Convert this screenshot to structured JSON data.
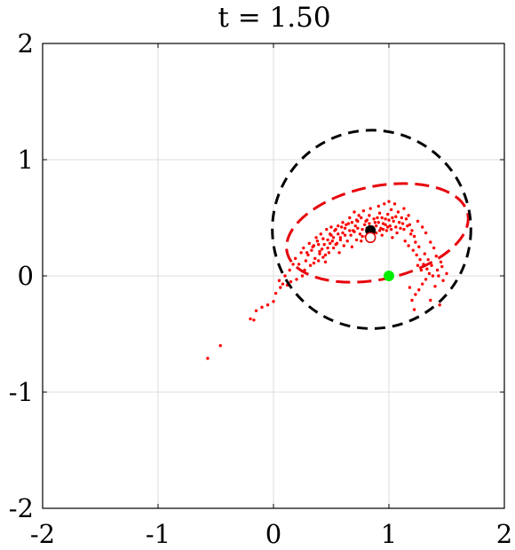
{
  "chart_data": {
    "type": "scatter",
    "title": "t = 1.50",
    "xlabel": "",
    "ylabel": "",
    "xlim": [
      -2,
      2
    ],
    "ylim": [
      -2,
      2
    ],
    "x_ticks": [
      -2,
      -1,
      0,
      1,
      2
    ],
    "y_ticks": [
      -2,
      -1,
      0,
      1,
      2
    ],
    "x_tick_labels": [
      "-2",
      "-1",
      "0",
      "1",
      "2"
    ],
    "y_tick_labels": [
      "-2",
      "-1",
      "0",
      "1",
      "2"
    ],
    "grid": true,
    "colors": {
      "particles": "#ff0000",
      "ellipse": "#e8000b",
      "circle": "#000000",
      "target": "#00ee00",
      "mean_marker": "#000000",
      "estimate_marker": "#ffffff",
      "grid": "#dcdcdc"
    },
    "circle": {
      "center": [
        0.85,
        0.4
      ],
      "radius": 0.86
    },
    "ellipse": {
      "center": [
        0.9,
        0.37
      ],
      "semi_axes": [
        0.8,
        0.4
      ],
      "angle_deg": 12
    },
    "markers": [
      {
        "name": "mean",
        "x": 0.84,
        "y": 0.39,
        "color": "#000000"
      },
      {
        "name": "estimate",
        "x": 0.84,
        "y": 0.33,
        "color": "#ffffff"
      },
      {
        "name": "target",
        "x": 1.0,
        "y": 0.0,
        "color": "#00ee00"
      }
    ],
    "particles": [
      [
        -0.57,
        -0.71
      ],
      [
        -0.46,
        -0.6
      ],
      [
        -0.2,
        -0.37
      ],
      [
        -0.17,
        -0.38
      ],
      [
        -0.15,
        -0.3
      ],
      [
        -0.1,
        -0.27
      ],
      [
        -0.05,
        -0.25
      ],
      [
        0.0,
        -0.22
      ],
      [
        0.02,
        -0.15
      ],
      [
        0.06,
        -0.1
      ],
      [
        0.08,
        -0.07
      ],
      [
        0.12,
        -0.08
      ],
      [
        0.15,
        -0.05
      ],
      [
        0.2,
        -0.03
      ],
      [
        0.25,
        0.0
      ],
      [
        0.27,
        0.05
      ],
      [
        0.22,
        0.1
      ],
      [
        0.28,
        0.13
      ],
      [
        0.3,
        0.18
      ],
      [
        0.33,
        0.22
      ],
      [
        0.35,
        0.26
      ],
      [
        0.38,
        0.3
      ],
      [
        0.32,
        0.09
      ],
      [
        0.36,
        0.15
      ],
      [
        0.4,
        0.19
      ],
      [
        0.42,
        0.23
      ],
      [
        0.44,
        0.27
      ],
      [
        0.47,
        0.31
      ],
      [
        0.5,
        0.35
      ],
      [
        0.53,
        0.39
      ],
      [
        0.45,
        0.12
      ],
      [
        0.48,
        0.2
      ],
      [
        0.52,
        0.24
      ],
      [
        0.55,
        0.28
      ],
      [
        0.58,
        0.33
      ],
      [
        0.6,
        0.37
      ],
      [
        0.62,
        0.41
      ],
      [
        0.65,
        0.45
      ],
      [
        0.57,
        0.2
      ],
      [
        0.61,
        0.26
      ],
      [
        0.64,
        0.3
      ],
      [
        0.67,
        0.35
      ],
      [
        0.69,
        0.39
      ],
      [
        0.71,
        0.43
      ],
      [
        0.73,
        0.47
      ],
      [
        0.68,
        0.25
      ],
      [
        0.72,
        0.31
      ],
      [
        0.75,
        0.36
      ],
      [
        0.77,
        0.4
      ],
      [
        0.79,
        0.44
      ],
      [
        0.81,
        0.48
      ],
      [
        0.83,
        0.52
      ],
      [
        0.76,
        0.3
      ],
      [
        0.8,
        0.34
      ],
      [
        0.82,
        0.38
      ],
      [
        0.86,
        0.42
      ],
      [
        0.88,
        0.46
      ],
      [
        0.9,
        0.5
      ],
      [
        0.92,
        0.54
      ],
      [
        0.85,
        0.33
      ],
      [
        0.89,
        0.37
      ],
      [
        0.93,
        0.41
      ],
      [
        0.95,
        0.45
      ],
      [
        0.97,
        0.49
      ],
      [
        0.99,
        0.53
      ],
      [
        1.02,
        0.57
      ],
      [
        0.94,
        0.35
      ],
      [
        0.98,
        0.39
      ],
      [
        1.01,
        0.43
      ],
      [
        1.04,
        0.47
      ],
      [
        1.06,
        0.51
      ],
      [
        1.08,
        0.55
      ],
      [
        1.03,
        0.33
      ],
      [
        1.07,
        0.37
      ],
      [
        1.1,
        0.41
      ],
      [
        1.12,
        0.45
      ],
      [
        1.15,
        0.49
      ],
      [
        1.18,
        0.44
      ],
      [
        1.2,
        0.39
      ],
      [
        1.22,
        0.34
      ],
      [
        1.14,
        0.3
      ],
      [
        1.17,
        0.26
      ],
      [
        1.21,
        0.22
      ],
      [
        1.24,
        0.18
      ],
      [
        1.27,
        0.14
      ],
      [
        1.25,
        0.09
      ],
      [
        1.28,
        0.05
      ],
      [
        1.3,
        0.1
      ],
      [
        1.33,
        0.06
      ],
      [
        1.35,
        0.02
      ],
      [
        1.38,
        0.0
      ],
      [
        1.32,
        -0.03
      ],
      [
        1.29,
        -0.07
      ],
      [
        1.26,
        -0.12
      ],
      [
        1.23,
        -0.16
      ],
      [
        1.2,
        -0.21
      ],
      [
        1.22,
        -0.29
      ],
      [
        1.18,
        -0.1
      ],
      [
        1.43,
        0.0
      ],
      [
        1.47,
        -0.04
      ],
      [
        1.5,
        0.02
      ],
      [
        1.4,
        -0.09
      ],
      [
        1.36,
        -0.21
      ],
      [
        1.44,
        -0.25
      ],
      [
        1.13,
        0.58
      ],
      [
        1.17,
        0.52
      ],
      [
        1.25,
        0.47
      ],
      [
        1.29,
        0.42
      ],
      [
        1.32,
        0.37
      ],
      [
        1.36,
        0.29
      ],
      [
        1.39,
        0.24
      ],
      [
        1.41,
        0.17
      ],
      [
        1.45,
        0.12
      ],
      [
        0.74,
        0.52
      ],
      [
        0.78,
        0.56
      ],
      [
        0.84,
        0.58
      ],
      [
        0.91,
        0.6
      ],
      [
        0.96,
        0.62
      ],
      [
        1.0,
        0.64
      ],
      [
        1.05,
        0.62
      ],
      [
        0.66,
        0.5
      ],
      [
        0.7,
        0.55
      ],
      [
        0.6,
        0.46
      ],
      [
        0.56,
        0.43
      ],
      [
        0.5,
        0.42
      ],
      [
        0.46,
        0.4
      ],
      [
        0.41,
        0.36
      ],
      [
        0.37,
        0.33
      ],
      [
        0.31,
        0.28
      ],
      [
        0.26,
        0.24
      ],
      [
        0.24,
        0.2
      ],
      [
        0.19,
        0.15
      ],
      [
        0.17,
        0.1
      ],
      [
        0.14,
        0.05
      ],
      [
        0.1,
        0.0
      ],
      [
        0.05,
        -0.04
      ],
      [
        0.29,
        0.2
      ],
      [
        0.34,
        0.25
      ],
      [
        0.39,
        0.27
      ],
      [
        0.43,
        0.32
      ],
      [
        0.49,
        0.36
      ],
      [
        0.54,
        0.4
      ],
      [
        0.59,
        0.42
      ],
      [
        0.63,
        0.44
      ],
      [
        0.68,
        0.46
      ],
      [
        0.72,
        0.48
      ],
      [
        0.76,
        0.5
      ],
      [
        0.8,
        0.47
      ],
      [
        0.83,
        0.45
      ],
      [
        0.87,
        0.49
      ],
      [
        0.91,
        0.46
      ],
      [
        0.94,
        0.5
      ],
      [
        0.97,
        0.44
      ],
      [
        1.0,
        0.48
      ],
      [
        1.03,
        0.5
      ],
      [
        1.06,
        0.42
      ],
      [
        1.09,
        0.46
      ],
      [
        1.11,
        0.5
      ],
      [
        1.13,
        0.4
      ],
      [
        1.16,
        0.43
      ],
      [
        1.19,
        0.36
      ],
      [
        1.23,
        0.29
      ],
      [
        1.26,
        0.25
      ],
      [
        1.31,
        0.19
      ],
      [
        1.34,
        0.14
      ],
      [
        1.37,
        0.09
      ],
      [
        1.42,
        0.05
      ],
      [
        1.46,
        0.08
      ],
      [
        0.77,
        0.34
      ],
      [
        0.81,
        0.41
      ],
      [
        0.86,
        0.36
      ],
      [
        0.89,
        0.43
      ],
      [
        0.92,
        0.39
      ],
      [
        0.95,
        0.4
      ],
      [
        0.99,
        0.42
      ],
      [
        1.02,
        0.4
      ],
      [
        0.7,
        0.38
      ],
      [
        0.73,
        0.41
      ],
      [
        0.66,
        0.39
      ],
      [
        0.62,
        0.35
      ],
      [
        0.58,
        0.31
      ],
      [
        0.54,
        0.27
      ],
      [
        0.51,
        0.3
      ],
      [
        0.47,
        0.24
      ],
      [
        0.43,
        0.16
      ],
      [
        0.39,
        0.13
      ],
      [
        0.35,
        0.11
      ],
      [
        0.4,
        0.21
      ],
      [
        0.45,
        0.18
      ],
      [
        0.49,
        0.28
      ],
      [
        0.52,
        0.33
      ],
      [
        0.56,
        0.36
      ]
    ]
  }
}
